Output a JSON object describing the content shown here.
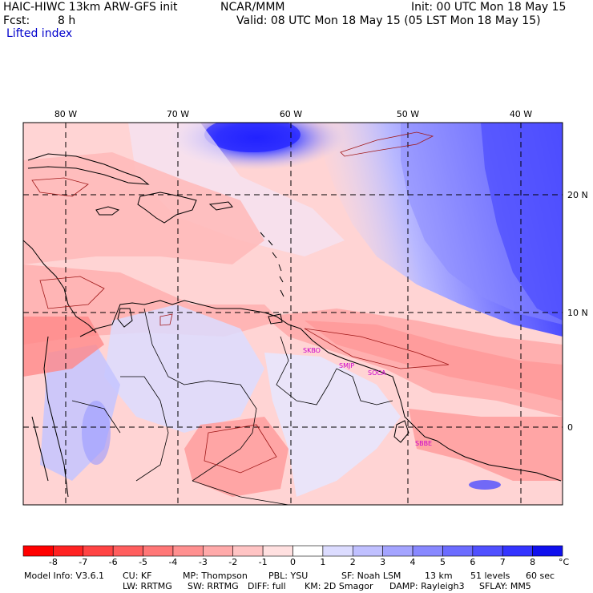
{
  "header": {
    "model_title": "HAIC-HIWC 13km ARW-GFS init",
    "org": "NCAR/MMM",
    "init": "Init: 00 UTC Mon 18 May 15",
    "fcst_label": "Fcst:",
    "fcst_value": "8 h",
    "valid": "Valid: 08 UTC Mon 18 May 15 (05 LST Mon 18 May 15)",
    "field": "Lifted index"
  },
  "map": {
    "lon_labels": [
      "80 W",
      "70 W",
      "60 W",
      "50 W",
      "40 W"
    ],
    "lat_labels": [
      "20 N",
      "10 N",
      "0"
    ],
    "stations": [
      "SKBO",
      "SMJP",
      "SOCA",
      "SBBE"
    ]
  },
  "colorbar": {
    "ticks": [
      "-8",
      "-7",
      "-6",
      "-5",
      "-4",
      "-3",
      "-2",
      "-1",
      "0",
      "1",
      "2",
      "3",
      "4",
      "5",
      "6",
      "7",
      "8"
    ],
    "unit": "°C",
    "colors": [
      "#ff0000",
      "#ff2222",
      "#ff4444",
      "#ff5e5e",
      "#ff7777",
      "#ff9090",
      "#ffaaaa",
      "#ffc4c4",
      "#ffe0e0",
      "#ffffff",
      "#dcdcff",
      "#c0c0ff",
      "#a4a4ff",
      "#8888ff",
      "#6c6cff",
      "#5050ff",
      "#3434ff",
      "#1010ee"
    ]
  },
  "footer": {
    "line1": [
      "Model Info: V3.6.1",
      "CU: KF",
      "MP: Thompson",
      "PBL: YSU",
      "SF: Noah LSM",
      "13 km",
      "51 levels",
      "60 sec"
    ],
    "line2": [
      "LW: RRTMG",
      "SW: RRTMG",
      "DIFF: full",
      "KM: 2D Smagor",
      "DAMP: Rayleigh3",
      "SFLAY: MM5"
    ]
  }
}
